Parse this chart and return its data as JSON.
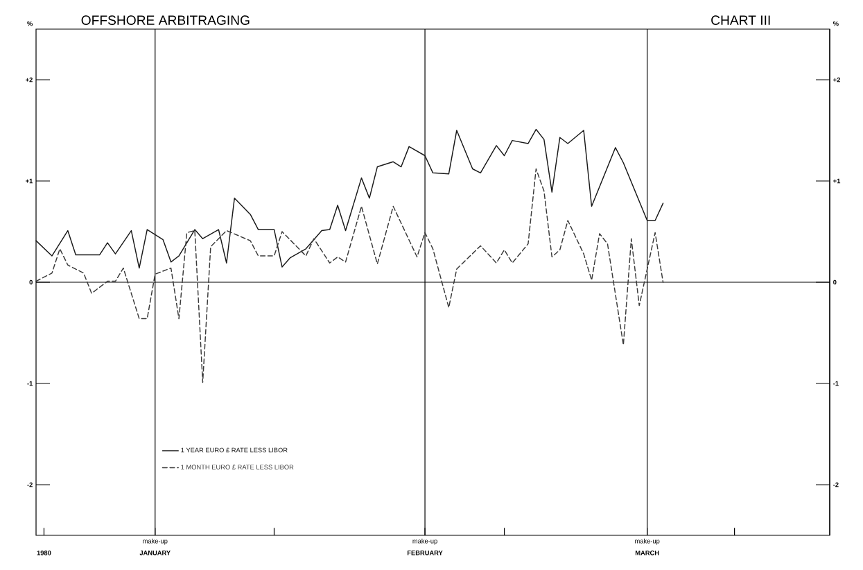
{
  "chart_data": {
    "type": "line",
    "title": "OFFSHORE ARBITRAGING",
    "annotations": [
      "CHART III"
    ],
    "ylabel": "%",
    "y2label": "%",
    "xlim": [
      "1980-01-01",
      "1980-04-10"
    ],
    "xticks": [
      {
        "value": "1980-01-02",
        "label": "1980"
      },
      {
        "value": "1980-01-16",
        "label": "JANUARY"
      },
      {
        "value": "1980-01-31",
        "label": null
      },
      {
        "value": "1980-02-19",
        "label": "FEBRUARY"
      },
      {
        "value": "1980-02-29",
        "label": null
      },
      {
        "value": "1980-03-18",
        "label": "MARCH"
      },
      {
        "value": "1980-03-29",
        "label": null
      }
    ],
    "ylim": [
      -2.5,
      2.5
    ],
    "yticks": [
      {
        "value": -2,
        "label": "-2"
      },
      {
        "value": -1,
        "label": "-1"
      },
      {
        "value": 0,
        "label": "0"
      },
      {
        "value": 1,
        "label": "+1"
      },
      {
        "value": 2,
        "label": "+2"
      }
    ],
    "y2lim": [
      -2.5,
      2.5
    ],
    "y2ticks": [
      {
        "value": -2,
        "label": "-2"
      },
      {
        "value": -1,
        "label": "-1"
      },
      {
        "value": 0,
        "label": "0"
      },
      {
        "value": 1,
        "label": "+1"
      },
      {
        "value": 2,
        "label": "+2"
      }
    ],
    "ref_lines": [
      {
        "axis": "y",
        "value": 0
      },
      {
        "axis": "x",
        "value": "1980-01-16",
        "label": "make-up"
      },
      {
        "axis": "x",
        "value": "1980-02-19",
        "label": "make-up"
      },
      {
        "axis": "x",
        "value": "1980-03-18",
        "label": "make-up"
      }
    ],
    "grid": false,
    "legend": "bottom left",
    "series": [
      {
        "name": "1 YEAR EURO £ RATE LESS LIBOR",
        "color": "#1a1a1a",
        "line_style": "solid",
        "x": [
          "1980-01-01",
          "1980-01-03",
          "1980-01-05",
          "1980-01-06",
          "1980-01-09",
          "1980-01-10",
          "1980-01-11",
          "1980-01-13",
          "1980-01-14",
          "1980-01-15",
          "1980-01-17",
          "1980-01-18",
          "1980-01-19",
          "1980-01-21",
          "1980-01-22",
          "1980-01-24",
          "1980-01-25",
          "1980-01-26",
          "1980-01-28",
          "1980-01-29",
          "1980-01-31",
          "1980-02-01",
          "1980-02-02",
          "1980-02-04",
          "1980-02-06",
          "1980-02-07",
          "1980-02-08",
          "1980-02-09",
          "1980-02-11",
          "1980-02-12",
          "1980-02-13",
          "1980-02-15",
          "1980-02-16",
          "1980-02-17",
          "1980-02-19",
          "1980-02-20",
          "1980-02-22",
          "1980-02-23",
          "1980-02-25",
          "1980-02-26",
          "1980-02-28",
          "1980-02-29",
          "1980-03-01",
          "1980-03-03",
          "1980-03-04",
          "1980-03-05",
          "1980-03-06",
          "1980-03-07",
          "1980-03-08",
          "1980-03-10",
          "1980-03-11",
          "1980-03-14",
          "1980-03-15",
          "1980-03-18",
          "1980-03-19",
          "1980-03-20"
        ],
        "values": [
          0.41,
          0.26,
          0.51,
          0.27,
          0.27,
          0.39,
          0.28,
          0.51,
          0.14,
          0.52,
          0.42,
          0.2,
          0.26,
          0.52,
          0.43,
          0.52,
          0.19,
          0.83,
          0.67,
          0.52,
          0.52,
          0.15,
          0.24,
          0.33,
          0.51,
          0.52,
          0.76,
          0.51,
          1.03,
          0.83,
          1.14,
          1.19,
          1.14,
          1.34,
          1.25,
          1.08,
          1.07,
          1.5,
          1.12,
          1.08,
          1.35,
          1.25,
          1.4,
          1.37,
          1.51,
          1.41,
          0.89,
          1.43,
          1.37,
          1.5,
          0.75,
          1.33,
          1.18,
          0.61,
          0.61,
          0.78
        ]
      },
      {
        "name": "1 MONTH EURO £ RATE LESS LIBOR",
        "color": "#3a3a3a",
        "line_style": "dashed",
        "x": [
          "1980-01-01",
          "1980-01-03",
          "1980-01-04",
          "1980-01-05",
          "1980-01-07",
          "1980-01-08",
          "1980-01-10",
          "1980-01-11",
          "1980-01-12",
          "1980-01-14",
          "1980-01-15",
          "1980-01-16",
          "1980-01-18",
          "1980-01-19",
          "1980-01-20",
          "1980-01-21",
          "1980-01-22",
          "1980-01-23",
          "1980-01-25",
          "1980-01-28",
          "1980-01-29",
          "1980-01-31",
          "1980-02-01",
          "1980-02-02",
          "1980-02-04",
          "1980-02-05",
          "1980-02-07",
          "1980-02-08",
          "1980-02-09",
          "1980-02-11",
          "1980-02-13",
          "1980-02-15",
          "1980-02-18",
          "1980-02-19",
          "1980-02-20",
          "1980-02-22",
          "1980-02-23",
          "1980-02-26",
          "1980-02-28",
          "1980-02-29",
          "1980-03-01",
          "1980-03-03",
          "1980-03-04",
          "1980-03-05",
          "1980-03-06",
          "1980-03-07",
          "1980-03-08",
          "1980-03-10",
          "1980-03-11",
          "1980-03-12",
          "1980-03-13",
          "1980-03-15",
          "1980-03-16",
          "1980-03-17",
          "1980-03-19",
          "1980-03-20"
        ],
        "values": [
          0.01,
          0.09,
          0.33,
          0.17,
          0.09,
          -0.11,
          0.01,
          0.01,
          0.14,
          -0.36,
          -0.36,
          0.08,
          0.14,
          -0.36,
          0.49,
          0.51,
          -0.99,
          0.35,
          0.51,
          0.41,
          0.26,
          0.26,
          0.5,
          0.42,
          0.26,
          0.43,
          0.19,
          0.25,
          0.2,
          0.75,
          0.18,
          0.75,
          0.25,
          0.49,
          0.33,
          -0.25,
          0.13,
          0.36,
          0.19,
          0.32,
          0.19,
          0.38,
          1.12,
          0.9,
          0.25,
          0.32,
          0.61,
          0.28,
          0.02,
          0.48,
          0.38,
          -0.62,
          0.43,
          -0.23,
          0.49,
          0.0
        ]
      }
    ]
  }
}
